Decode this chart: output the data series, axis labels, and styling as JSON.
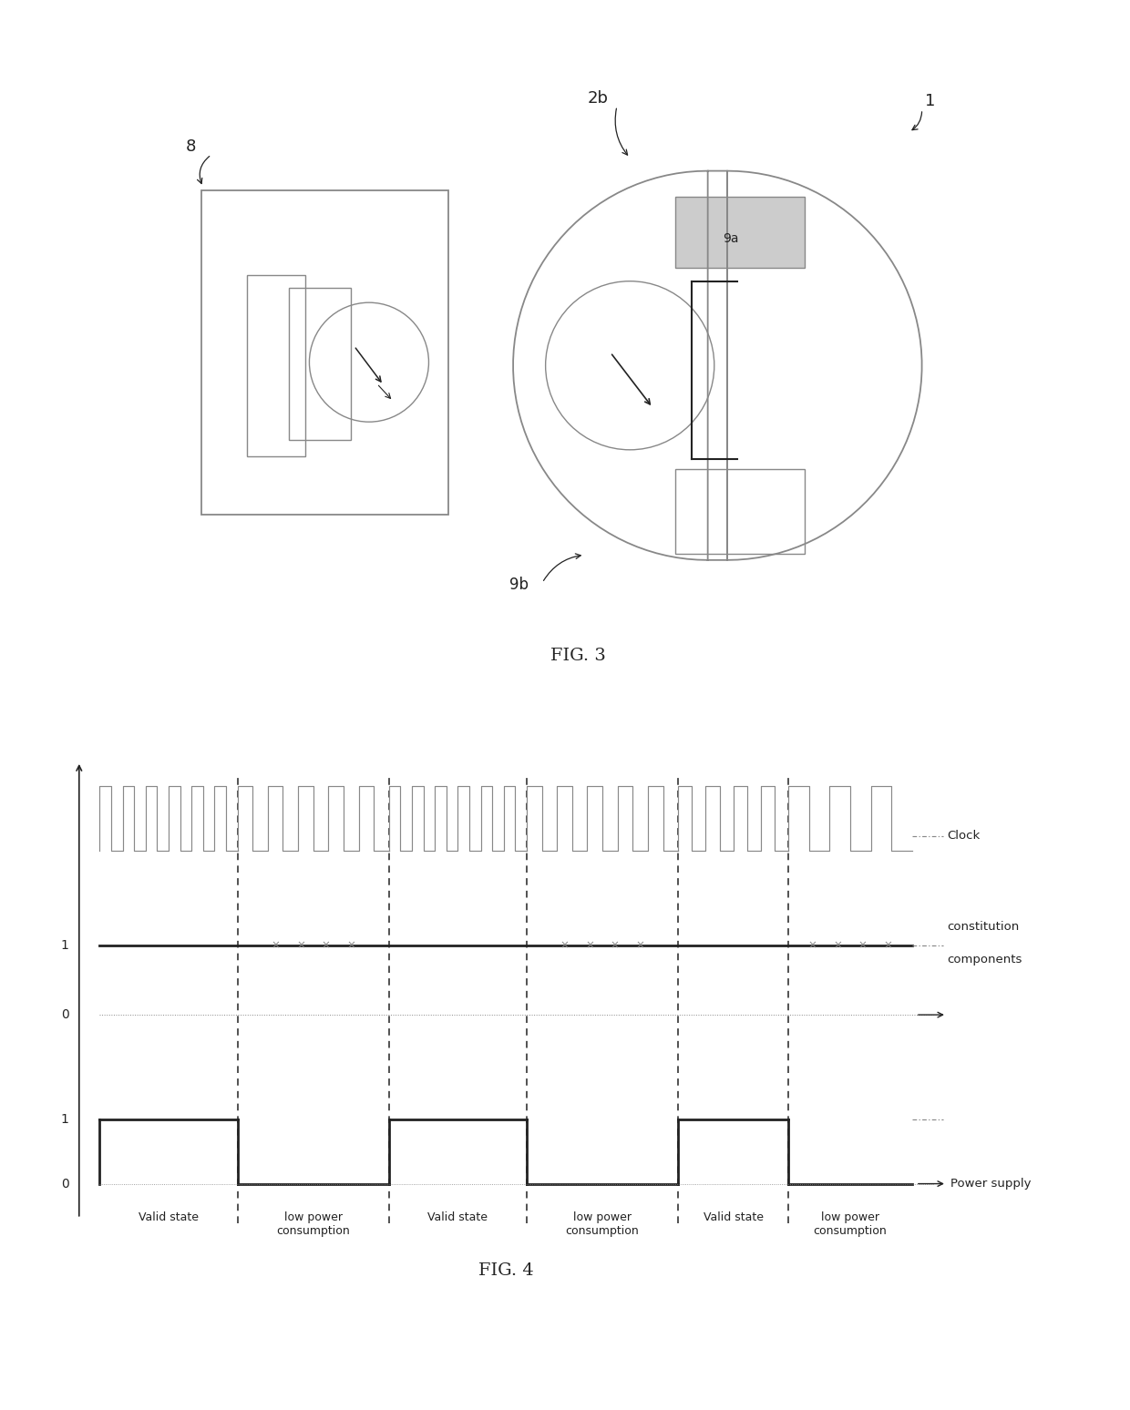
{
  "fig3_label": "FIG. 3",
  "fig4_label": "FIG. 4",
  "bg_color": "#ffffff",
  "line_color": "#888888",
  "dark_color": "#222222",
  "label_8": "8",
  "label_1": "1",
  "label_2b": "2b",
  "label_9a": "9a",
  "label_9b": "9b",
  "clock_label": "Clock",
  "components_label1": "constitution",
  "components_label2": "components",
  "power_label": "Power supply",
  "valid_state": "Valid state",
  "low_power": "low power\nconsumption",
  "tick_1_upper": "1",
  "tick_0_upper": "0",
  "tick_1_lower": "1",
  "tick_0_lower": "0"
}
